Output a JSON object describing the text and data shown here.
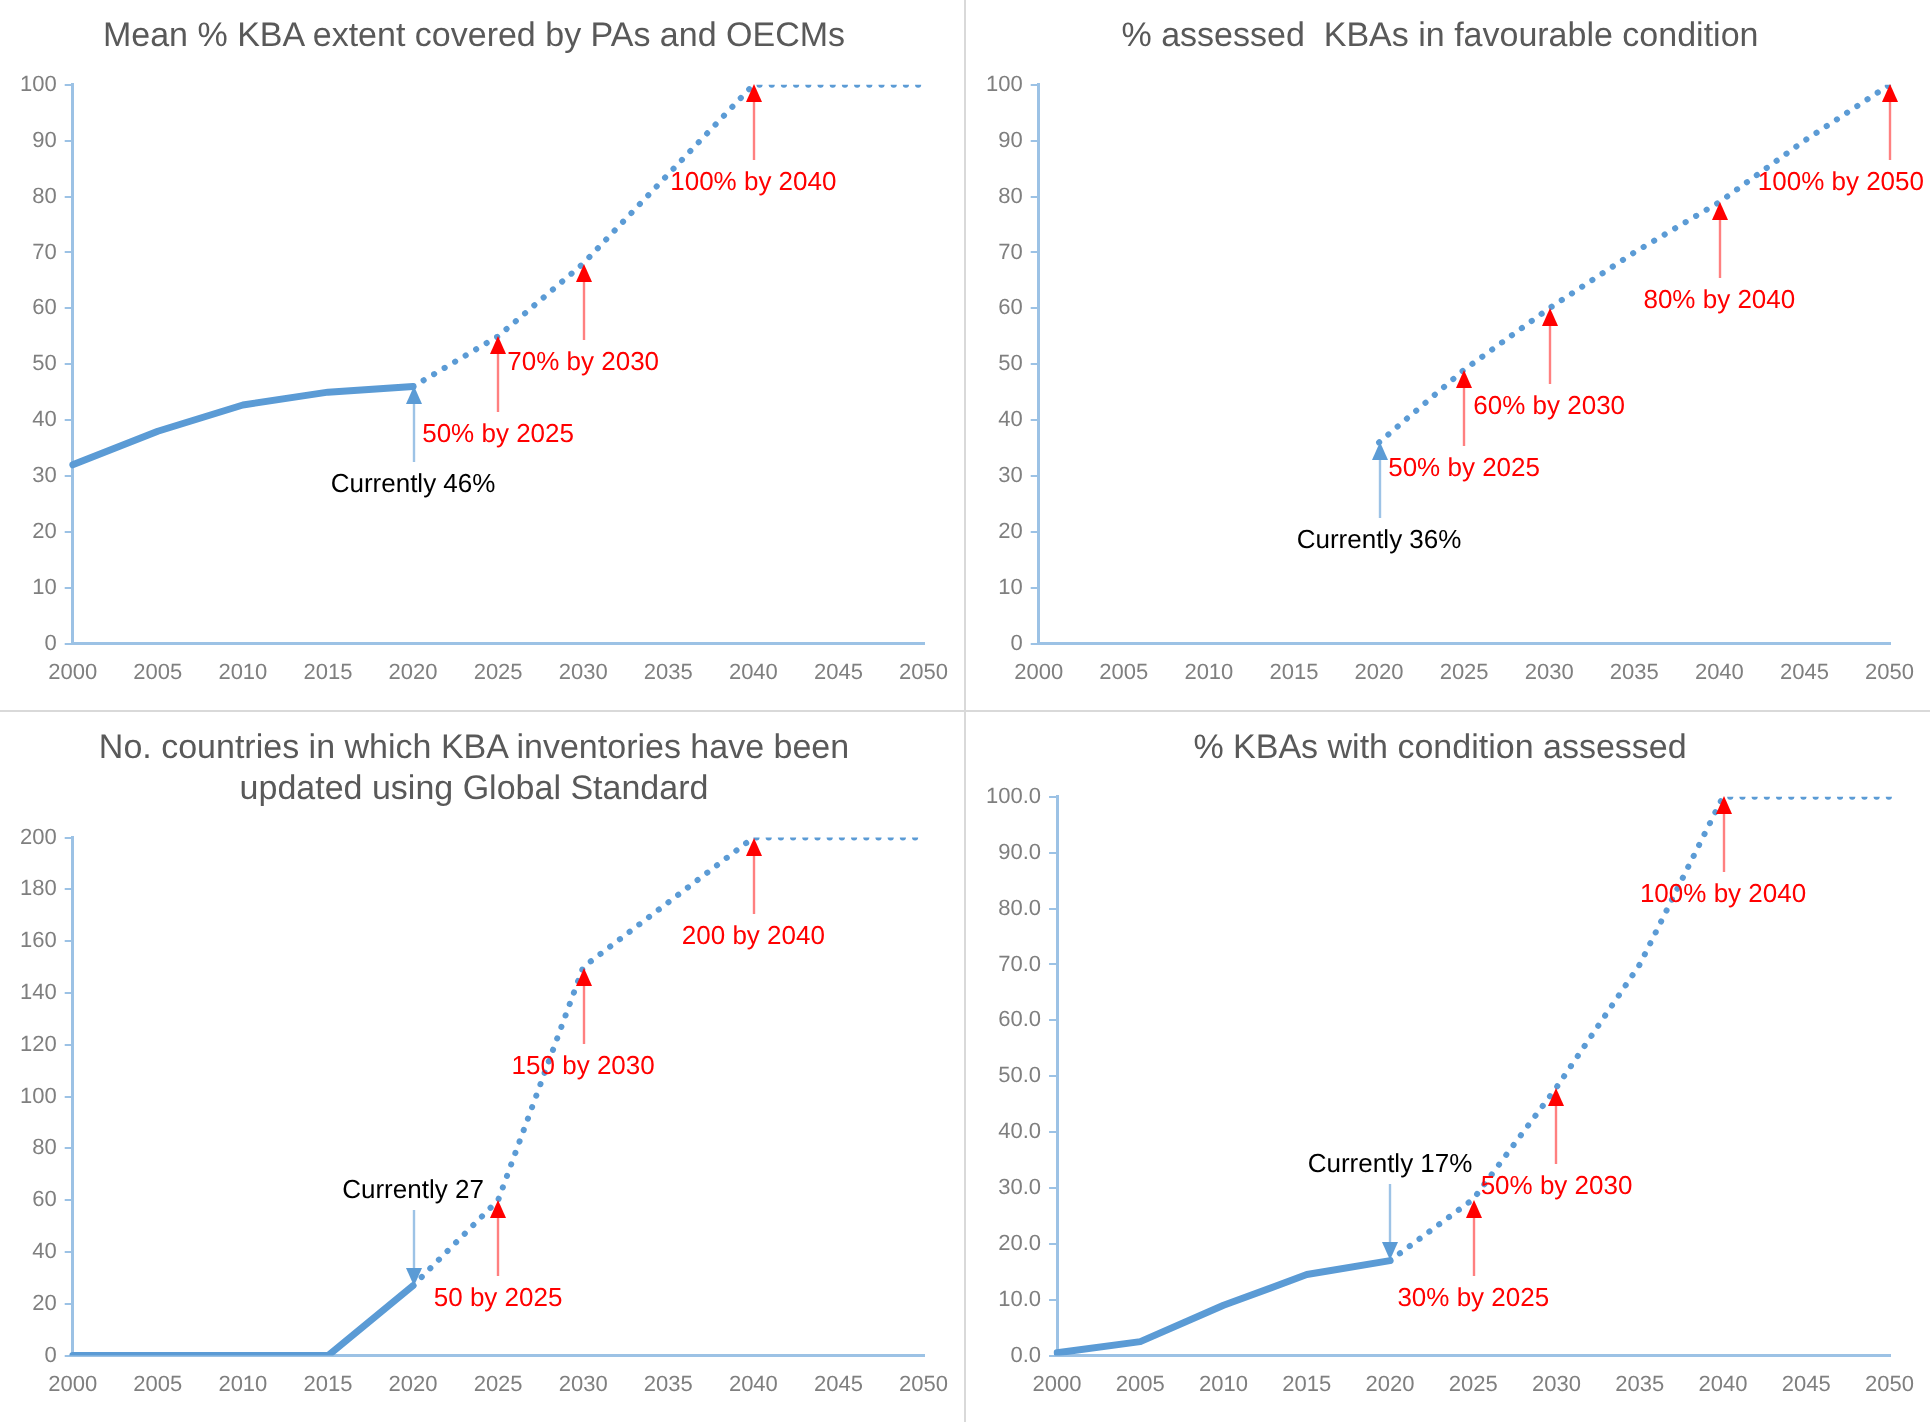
{
  "chart_data": [
    {
      "type": "line",
      "title": "Mean % KBA extent covered by PAs and OECMs",
      "categories": [
        "2000",
        "2005",
        "2010",
        "2015",
        "2020",
        "2025",
        "2030",
        "2035",
        "2040",
        "2045",
        "2050"
      ],
      "marker": "none",
      "ylim": [
        0,
        100
      ],
      "yticks": [
        0,
        10,
        20,
        30,
        40,
        50,
        60,
        70,
        80,
        90,
        100
      ],
      "series": [
        {
          "color": "#5b9bd5",
          "line_style": "solid",
          "values": [
            32,
            38,
            42.7,
            45,
            46,
            null,
            null,
            null,
            null,
            null,
            null
          ]
        },
        {
          "color": "#5b9bd5",
          "line_style": "dotted",
          "values": [
            null,
            null,
            null,
            null,
            46,
            55,
            68,
            84,
            100,
            100,
            100
          ]
        }
      ],
      "annotations": [
        {
          "text": "Currently 46%",
          "x": "2020",
          "y": 46
        },
        {
          "text": "50% by 2025",
          "x": "2025",
          "y": 55
        },
        {
          "text": "70% by 2030",
          "x": "2030",
          "y": 68
        },
        {
          "text": "100% by 2040",
          "x": "2040",
          "y": 100
        }
      ]
    },
    {
      "type": "line",
      "title": "% assessed  KBAs in favourable condition",
      "categories": [
        "2000",
        "2005",
        "2010",
        "2015",
        "2020",
        "2025",
        "2030",
        "2035",
        "2040",
        "2045",
        "2050"
      ],
      "marker": "none",
      "ylim": [
        0,
        100
      ],
      "yticks": [
        0,
        10,
        20,
        30,
        40,
        50,
        60,
        70,
        80,
        90,
        100
      ],
      "series": [
        {
          "color": "#5b9bd5",
          "line_style": "dotted",
          "values": [
            null,
            null,
            null,
            null,
            36,
            49,
            60,
            70,
            79,
            90,
            100
          ]
        }
      ],
      "annotations": [
        {
          "text": "Currently 36%",
          "x": "2020",
          "y": 36
        },
        {
          "text": "50% by 2025",
          "x": "2025",
          "y": 49
        },
        {
          "text": "60% by 2030",
          "x": "2030",
          "y": 60
        },
        {
          "text": "80% by 2040",
          "x": "2040",
          "y": 79
        },
        {
          "text": "100% by 2050",
          "x": "2050",
          "y": 100
        }
      ]
    },
    {
      "type": "line",
      "title": "No. countries in which KBA inventories have been updated using Global Standard",
      "categories": [
        "2000",
        "2005",
        "2010",
        "2015",
        "2020",
        "2025",
        "2030",
        "2035",
        "2040",
        "2045",
        "2050"
      ],
      "marker": "none",
      "ylim": [
        0,
        200
      ],
      "yticks": [
        0,
        20,
        40,
        60,
        80,
        100,
        120,
        140,
        160,
        180,
        200
      ],
      "series": [
        {
          "color": "#5b9bd5",
          "line_style": "solid",
          "values": [
            0,
            0,
            0,
            0,
            27,
            null,
            null,
            null,
            null,
            null,
            null
          ]
        },
        {
          "color": "#5b9bd5",
          "line_style": "dotted",
          "values": [
            null,
            null,
            null,
            null,
            27,
            60,
            150,
            175,
            200,
            200,
            200
          ]
        }
      ],
      "annotations": [
        {
          "text": "Currently 27",
          "x": "2020",
          "y": 27
        },
        {
          "text": "50 by 2025",
          "x": "2025",
          "y": 60
        },
        {
          "text": "150 by 2030",
          "x": "2030",
          "y": 150
        },
        {
          "text": "200 by 2040",
          "x": "2040",
          "y": 200
        }
      ]
    },
    {
      "type": "line",
      "title": "% KBAs with condition assessed",
      "categories": [
        "2000",
        "2005",
        "2010",
        "2015",
        "2020",
        "2025",
        "2030",
        "2035",
        "2040",
        "2045",
        "2050"
      ],
      "marker": "none",
      "ylim": [
        0,
        100
      ],
      "yticks": [
        {
          "value": 0,
          "label": "0.0"
        },
        {
          "value": 10,
          "label": "10.0"
        },
        {
          "value": 20,
          "label": "20.0"
        },
        {
          "value": 30,
          "label": "30.0"
        },
        {
          "value": 40,
          "label": "40.0"
        },
        {
          "value": 50,
          "label": "50.0"
        },
        {
          "value": 60,
          "label": "60.0"
        },
        {
          "value": 70,
          "label": "70.0"
        },
        {
          "value": 80,
          "label": "80.0"
        },
        {
          "value": 90,
          "label": "90.0"
        },
        {
          "value": 100,
          "label": "100.0"
        }
      ],
      "series": [
        {
          "color": "#5b9bd5",
          "line_style": "solid",
          "values": [
            0.5,
            2.5,
            9,
            14.5,
            17,
            null,
            null,
            null,
            null,
            null,
            null
          ]
        },
        {
          "color": "#5b9bd5",
          "line_style": "dotted",
          "values": [
            null,
            null,
            null,
            null,
            17,
            28,
            48,
            70,
            100,
            100,
            100
          ]
        }
      ],
      "annotations": [
        {
          "text": "Currently 17%",
          "x": "2020",
          "y": 17
        },
        {
          "text": "30% by 2025",
          "x": "2025",
          "y": 28
        },
        {
          "text": "50% by 2030",
          "x": "2030",
          "y": 48
        },
        {
          "text": "100% by 2040",
          "x": "2040",
          "y": 100
        }
      ]
    }
  ]
}
